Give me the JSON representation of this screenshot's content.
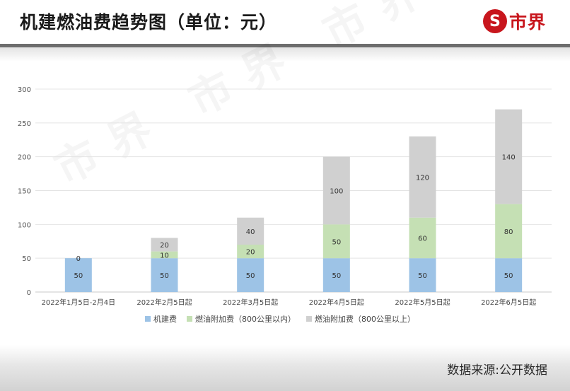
{
  "header": {
    "title": "机建燃油费趋势图（单位：元）",
    "logo_glyph": "S",
    "logo_text": "市界"
  },
  "watermark": "市界 市界 市界 市界",
  "footer": {
    "source": "数据来源:公开数据"
  },
  "colors": {
    "base": "#9dc3e6",
    "fuel_short": "#c5e0b4",
    "fuel_long": "#d0d0d0",
    "brand": "#c8161d"
  },
  "chart_data": {
    "type": "bar",
    "stacked": true,
    "categories": [
      "2022年1月5日-2月4日",
      "2022年2月5日起",
      "2022年3月5日起",
      "2022年4月5日起",
      "2022年5月5日起",
      "2022年6月5日起"
    ],
    "series": [
      {
        "name": "机建费",
        "color": "#9dc3e6",
        "values": [
          50,
          50,
          50,
          50,
          50,
          50
        ]
      },
      {
        "name": "燃油附加费（800公里以内）",
        "color": "#c5e0b4",
        "values": [
          0,
          10,
          20,
          50,
          60,
          80
        ]
      },
      {
        "name": "燃油附加费（800公里以上）",
        "color": "#d0d0d0",
        "values": [
          0,
          20,
          40,
          100,
          120,
          140
        ]
      }
    ],
    "data_labels": [
      [
        "50",
        "",
        "0"
      ],
      [
        "50",
        "10",
        "20"
      ],
      [
        "50",
        "20",
        "40"
      ],
      [
        "50",
        "50",
        "100"
      ],
      [
        "50",
        "60",
        "120"
      ],
      [
        "50",
        "80",
        "140"
      ]
    ],
    "yticks": [
      "0",
      "50",
      "100",
      "150",
      "200",
      "250",
      "300"
    ],
    "ylim": [
      0,
      300
    ],
    "grid": true,
    "legend": "bottom"
  }
}
